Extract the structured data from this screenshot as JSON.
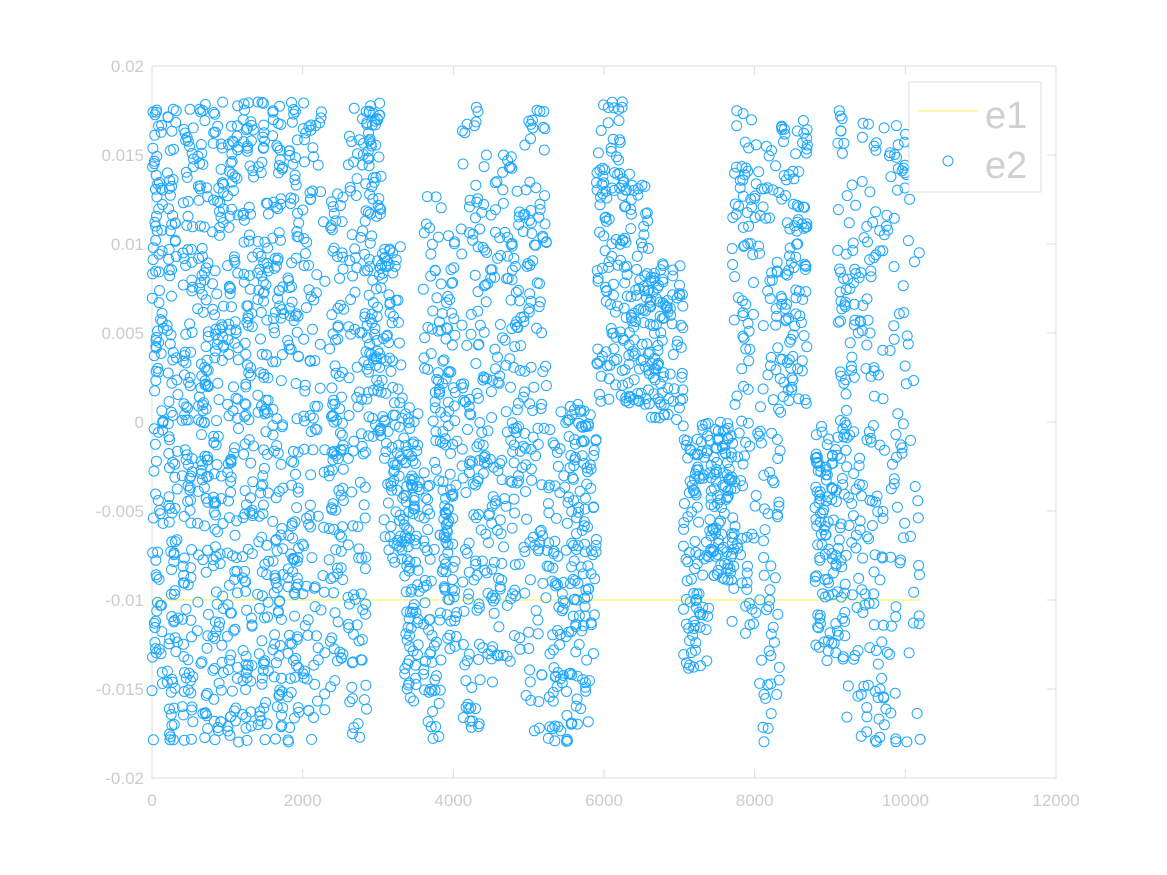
{
  "chart_data": {
    "type": "scatter",
    "title": "",
    "xlabel": "",
    "ylabel": "",
    "xlim": [
      0,
      12000
    ],
    "ylim": [
      -0.02,
      0.02
    ],
    "x_ticks": [
      0,
      2000,
      4000,
      6000,
      8000,
      10000,
      12000
    ],
    "x_tick_labels": [
      "0",
      "2000",
      "4000",
      "6000",
      "8000",
      "10000",
      "12000"
    ],
    "y_ticks": [
      -0.02,
      -0.015,
      -0.01,
      -0.005,
      0,
      0.005,
      0.01,
      0.015,
      0.02
    ],
    "y_tick_labels": [
      "-0.02",
      "-0.015",
      "-0.01",
      "-0.005",
      "0",
      "0.005",
      "0.01",
      "0.015",
      "0.02"
    ],
    "grid": false,
    "legend_position": "top-right",
    "colors": {
      "e1": "#ffee44",
      "e2": "#1ea7ff",
      "axis": "#dddddd",
      "text": "#cccccc"
    },
    "series": [
      {
        "name": "e1",
        "kind": "line",
        "x": [
          0,
          10200
        ],
        "y": [
          -0.01,
          -0.01
        ]
      },
      {
        "name": "e2",
        "kind": "scatter",
        "marker": "circle-open",
        "approx_point_count": 10200,
        "clusters": [
          {
            "x": [
              0,
              150
            ],
            "y": [
              -0.018,
              0.018
            ]
          },
          {
            "x": [
              200,
              350
            ],
            "y": [
              -0.018,
              0.018
            ]
          },
          {
            "x": [
              400,
              550
            ],
            "y": [
              -0.018,
              0.018
            ]
          },
          {
            "x": [
              600,
              750
            ],
            "y": [
              -0.018,
              0.018
            ]
          },
          {
            "x": [
              800,
              950
            ],
            "y": [
              -0.018,
              0.018
            ]
          },
          {
            "x": [
              1000,
              1150
            ],
            "y": [
              -0.018,
              0.018
            ]
          },
          {
            "x": [
              1200,
              1350
            ],
            "y": [
              -0.018,
              0.018
            ]
          },
          {
            "x": [
              1400,
              1550
            ],
            "y": [
              -0.018,
              0.018
            ]
          },
          {
            "x": [
              1600,
              1750
            ],
            "y": [
              -0.018,
              0.018
            ]
          },
          {
            "x": [
              1800,
              1950
            ],
            "y": [
              -0.018,
              0.018
            ]
          },
          {
            "x": [
              2000,
              2300
            ],
            "y": [
              -0.018,
              0.018
            ]
          },
          {
            "x": [
              2350,
              2550
            ],
            "y": [
              -0.015,
              0.013
            ]
          },
          {
            "x": [
              2600,
              2850
            ],
            "y": [
              -0.018,
              0.018
            ]
          },
          {
            "x": [
              2850,
              3050
            ],
            "y": [
              -0.001,
              0.018
            ]
          },
          {
            "x": [
              3050,
              3350
            ],
            "y": [
              -0.008,
              0.01
            ]
          },
          {
            "x": [
              3350,
              3550
            ],
            "y": [
              -0.016,
              0.001
            ]
          },
          {
            "x": [
              3600,
              3850
            ],
            "y": [
              -0.018,
              0.013
            ]
          },
          {
            "x": [
              3850,
              4050
            ],
            "y": [
              -0.013,
              0.011
            ]
          },
          {
            "x": [
              4100,
              4350
            ],
            "y": [
              -0.018,
              0.018
            ]
          },
          {
            "x": [
              4350,
              4650
            ],
            "y": [
              -0.015,
              0.015
            ]
          },
          {
            "x": [
              4650,
              4950
            ],
            "y": [
              -0.014,
              0.016
            ]
          },
          {
            "x": [
              4950,
              5250
            ],
            "y": [
              -0.018,
              0.018
            ]
          },
          {
            "x": [
              5250,
              5600
            ],
            "y": [
              -0.018,
              0.001
            ]
          },
          {
            "x": [
              5600,
              5900
            ],
            "y": [
              -0.018,
              0.001
            ]
          },
          {
            "x": [
              5900,
              6250
            ],
            "y": [
              0.001,
              0.018
            ]
          },
          {
            "x": [
              6250,
              6600
            ],
            "y": [
              0.001,
              0.014
            ]
          },
          {
            "x": [
              6600,
              7050
            ],
            "y": [
              0.0,
              0.009
            ]
          },
          {
            "x": [
              7050,
              7400
            ],
            "y": [
              -0.014,
              0.0
            ]
          },
          {
            "x": [
              7400,
              7700
            ],
            "y": [
              -0.009,
              0.0
            ]
          },
          {
            "x": [
              7700,
              8000
            ],
            "y": [
              -0.012,
              0.018
            ]
          },
          {
            "x": [
              8000,
              8350
            ],
            "y": [
              -0.018,
              0.016
            ]
          },
          {
            "x": [
              8350,
              8700
            ],
            "y": [
              0.001,
              0.018
            ]
          },
          {
            "x": [
              8800,
              9100
            ],
            "y": [
              -0.014,
              0.0
            ]
          },
          {
            "x": [
              9100,
              9350
            ],
            "y": [
              -0.018,
              0.018
            ]
          },
          {
            "x": [
              9350,
              9700
            ],
            "y": [
              -0.018,
              0.017
            ]
          },
          {
            "x": [
              9700,
              10200
            ],
            "y": [
              -0.018,
              0.018
            ]
          }
        ]
      }
    ]
  }
}
